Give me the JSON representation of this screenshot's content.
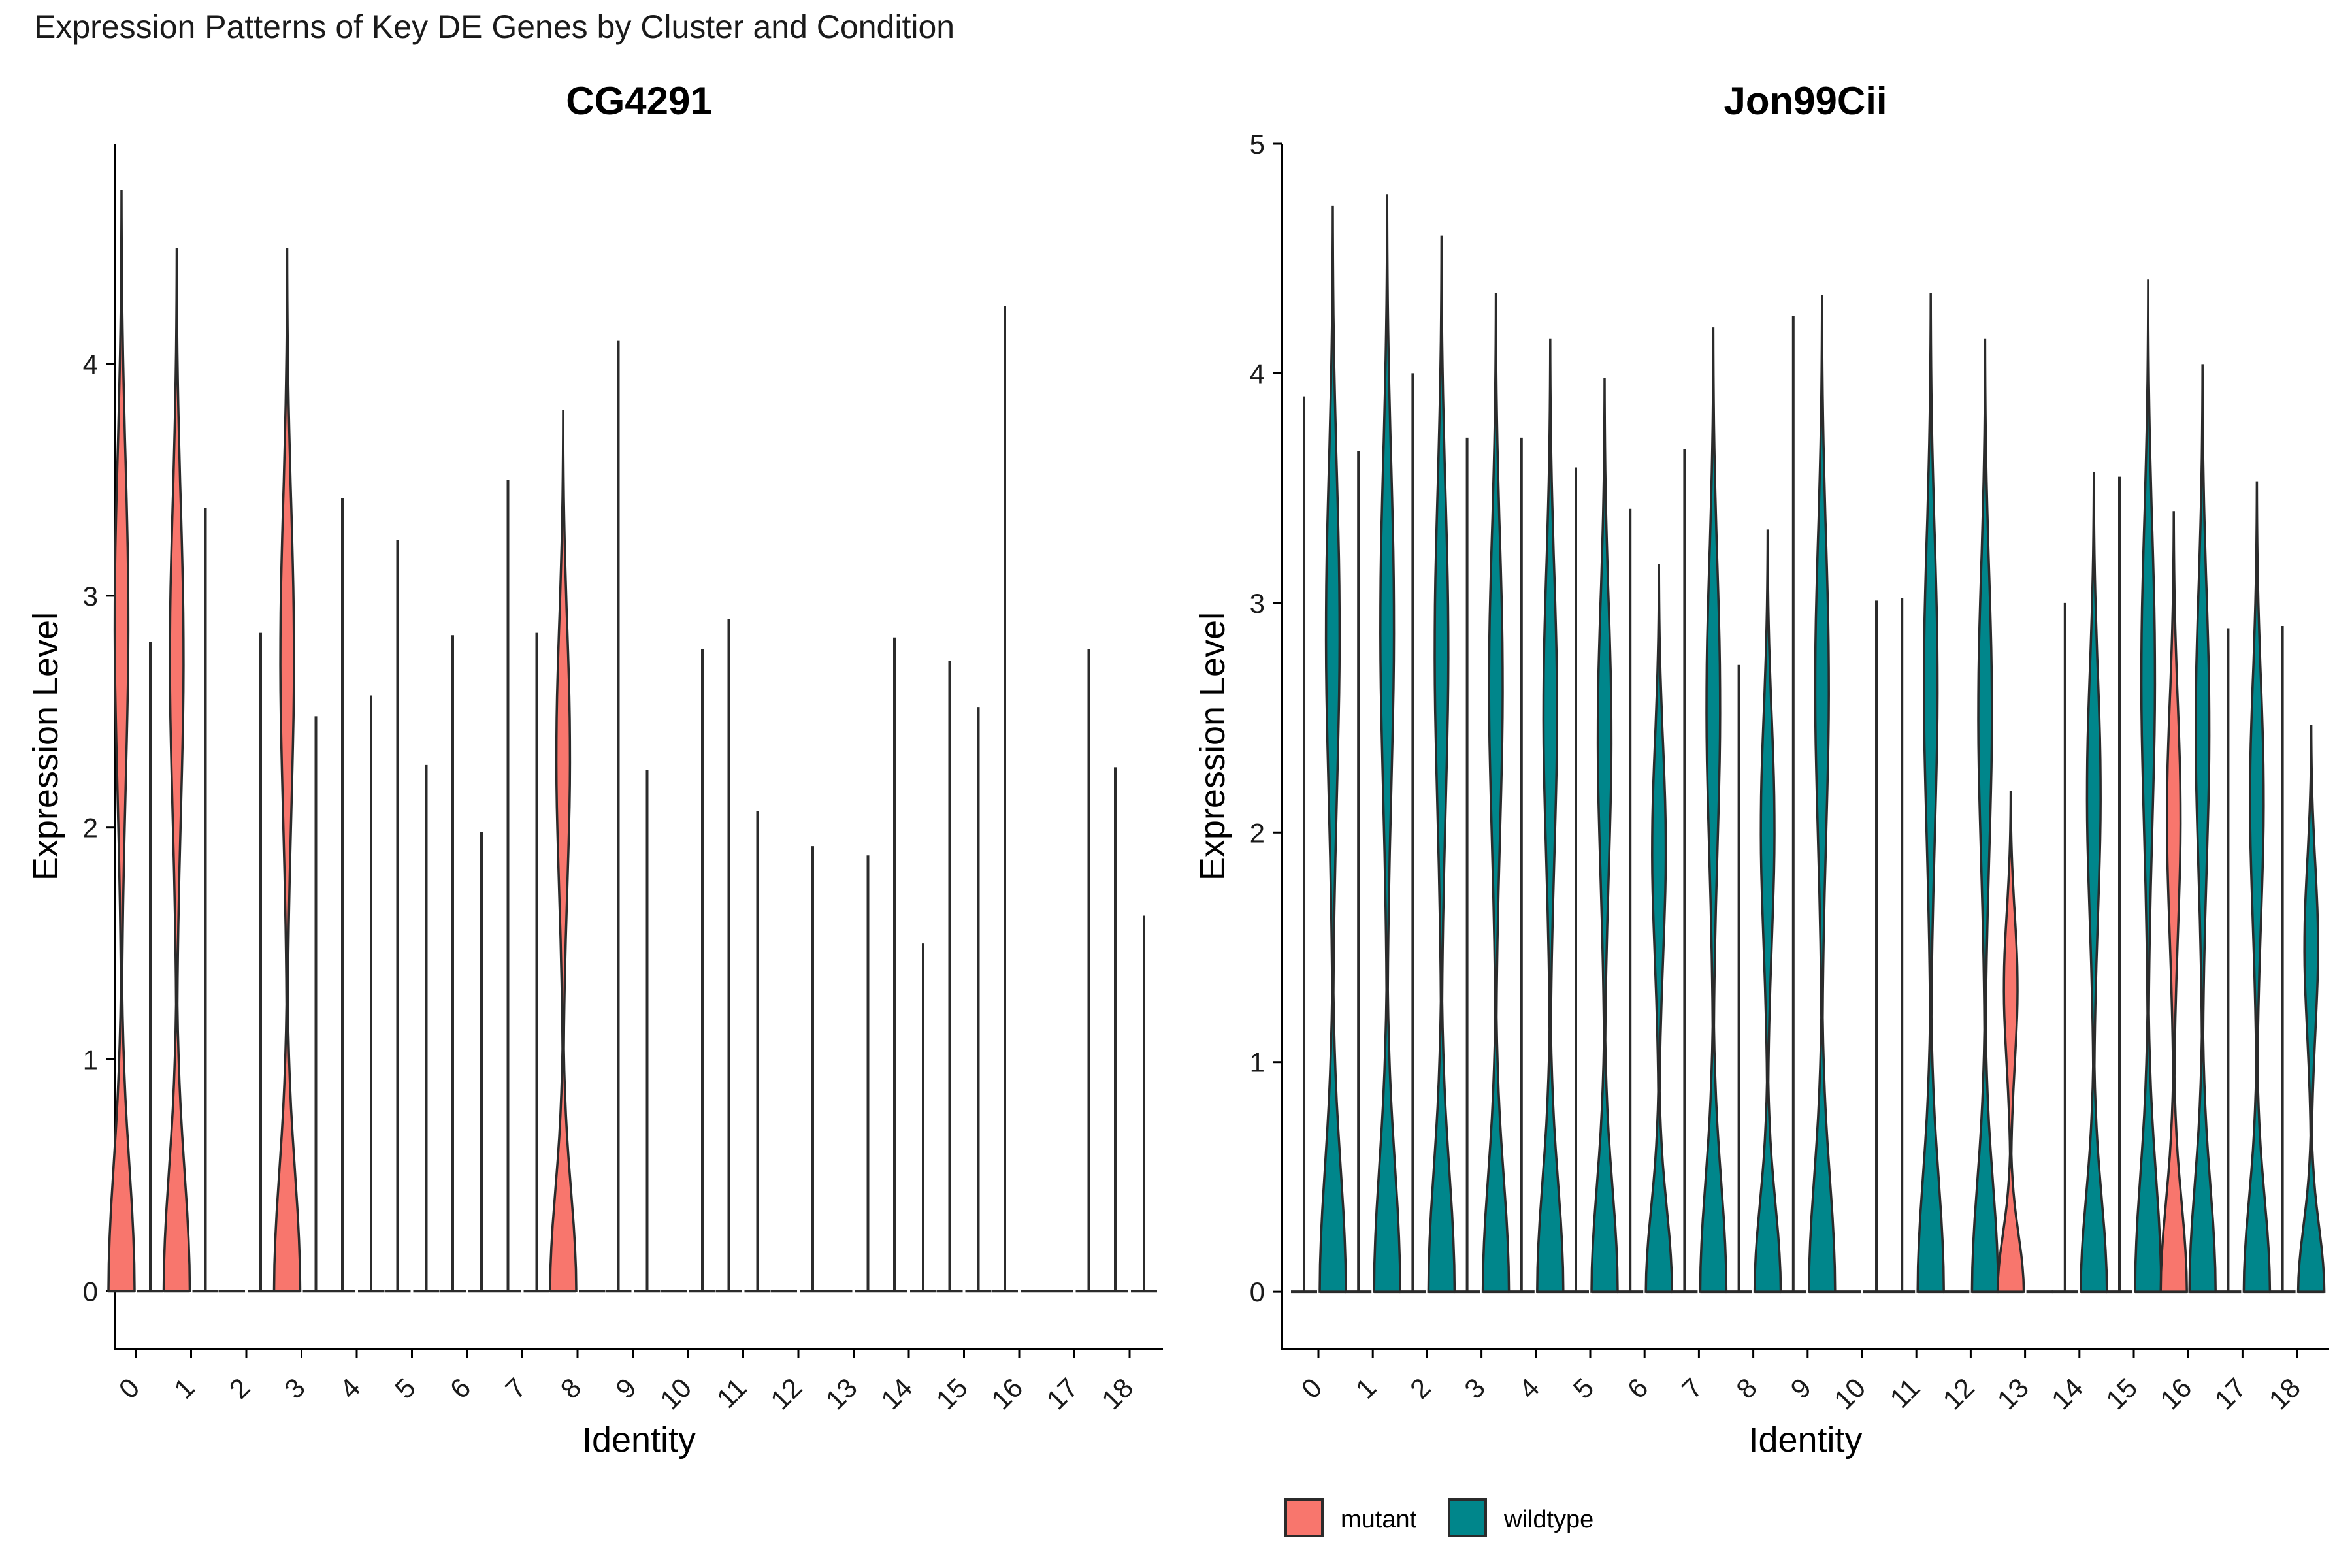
{
  "figure_title": "Expression Patterns of Key DE Genes by Cluster and Condition",
  "colors": {
    "mutant": "#F8766D",
    "wildtype": "#00868B",
    "outline": "#2b2b2b"
  },
  "legend": [
    {
      "key": "mutant",
      "label": "mutant"
    },
    {
      "key": "wildtype",
      "label": "wildtype"
    }
  ],
  "chart_data": [
    {
      "type": "violin",
      "title": "CG4291",
      "xlabel": "Identity",
      "ylabel": "Expression Level",
      "ylim": [
        -0.25,
        4.95
      ],
      "yticks": [
        0,
        1,
        2,
        3,
        4
      ],
      "categories": [
        "0",
        "1",
        "2",
        "3",
        "4",
        "5",
        "6",
        "7",
        "8",
        "9",
        "10",
        "11",
        "12",
        "13",
        "14",
        "15",
        "16",
        "17",
        "18"
      ],
      "series": [
        {
          "name": "mutant",
          "key": "mutant",
          "max": [
            4.75,
            4.5,
            0,
            4.5,
            3.42,
            3.24,
            2.83,
            3.5,
            3.8,
            4.1,
            0,
            2.9,
            0,
            0,
            2.82,
            2.72,
            4.25,
            0,
            2.26
          ],
          "shape": [
            "blob",
            "blob",
            "line",
            "blob",
            "line",
            "line",
            "line",
            "line",
            "blob",
            "line",
            "line",
            "line",
            "line",
            "line",
            "line",
            "line",
            "line",
            "line",
            "line"
          ]
        },
        {
          "name": "wildtype",
          "key": "wildtype",
          "max": [
            2.8,
            3.38,
            2.84,
            2.48,
            2.57,
            2.27,
            1.98,
            2.84,
            0,
            2.25,
            2.77,
            2.07,
            1.92,
            1.88,
            1.5,
            2.52,
            0,
            2.77,
            1.62
          ],
          "shape": [
            "line",
            "line",
            "line",
            "line",
            "line",
            "line",
            "line",
            "line",
            "line",
            "line",
            "line",
            "line",
            "line",
            "line",
            "line",
            "line",
            "line",
            "line",
            "line"
          ]
        }
      ]
    },
    {
      "type": "violin",
      "title": "Jon99Cii",
      "xlabel": "Identity",
      "ylabel": "Expression Level",
      "ylim": [
        -0.25,
        5.0
      ],
      "yticks": [
        0,
        1,
        2,
        3,
        4,
        5
      ],
      "categories": [
        "0",
        "1",
        "2",
        "3",
        "4",
        "5",
        "6",
        "7",
        "8",
        "9",
        "10",
        "11",
        "12",
        "13",
        "14",
        "15",
        "16",
        "17",
        "18"
      ],
      "series": [
        {
          "name": "mutant",
          "key": "mutant",
          "max": [
            3.9,
            3.66,
            4.0,
            3.72,
            3.72,
            3.59,
            3.41,
            3.67,
            2.73,
            4.25,
            0,
            3.02,
            0,
            2.18,
            3.0,
            3.55,
            3.4,
            2.89,
            2.9
          ],
          "shape": [
            "line",
            "line",
            "line",
            "line",
            "line",
            "line",
            "line",
            "line",
            "line",
            "line",
            "line",
            "line",
            "line",
            "blob",
            "line",
            "line",
            "blob",
            "line",
            "line"
          ]
        },
        {
          "name": "wildtype",
          "key": "wildtype",
          "max": [
            4.73,
            4.78,
            4.6,
            4.35,
            4.15,
            3.98,
            3.17,
            4.2,
            3.32,
            4.34,
            3.01,
            4.35,
            4.15,
            0,
            3.57,
            4.41,
            4.04,
            3.53,
            2.47
          ],
          "shape": [
            "blob",
            "blob",
            "blob",
            "blob",
            "blob",
            "blob",
            "blob",
            "blob",
            "blob",
            "blob",
            "line",
            "blob",
            "blob",
            "line",
            "blob",
            "blob",
            "blob",
            "blob",
            "blob"
          ]
        }
      ]
    }
  ]
}
